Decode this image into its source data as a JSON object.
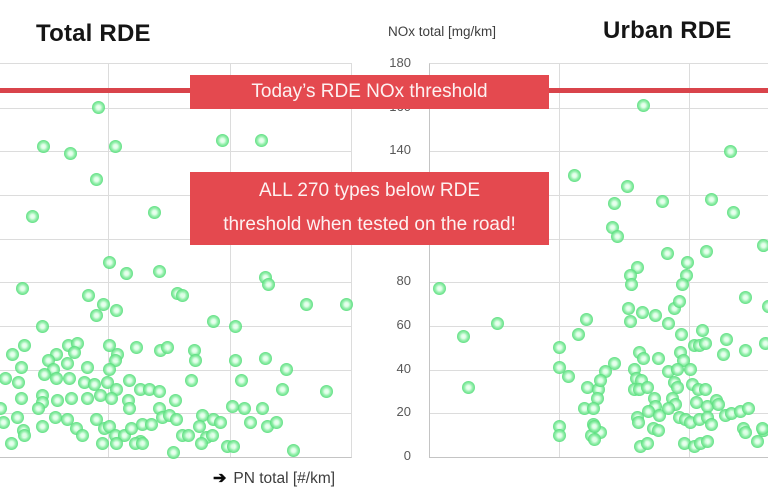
{
  "titles": {
    "left": "Total RDE",
    "right": "Urban RDE"
  },
  "y_axis": {
    "label": "NOx total [mg/km]",
    "ticks": [
      180,
      160,
      140,
      120,
      100,
      80,
      60,
      40,
      20,
      0
    ]
  },
  "x_axis": {
    "arrow": "➔",
    "label": "PN total [#/km]"
  },
  "threshold_banner": {
    "text": "Today’s RDE NOx threshold"
  },
  "callout_banner": {
    "line1": "ALL 270 types below RDE",
    "line2": "threshold when tested on the road!"
  },
  "colors": {
    "banner_red": "#e4494f",
    "line_red": "#d9444b",
    "dot_green": "#52dc78",
    "grid_gray": "#dcdcdc",
    "tick_text": "#585858"
  },
  "chart_data": [
    {
      "type": "scatter",
      "title": "Total RDE",
      "xlabel": "PN total [#/km]",
      "ylabel": "NOx total [mg/km]",
      "ylim": [
        0,
        180
      ],
      "yticks": [
        20,
        40,
        60,
        80,
        100,
        120,
        140,
        160
      ],
      "grid": true,
      "x_gridlines": [
        0.308,
        0.655
      ],
      "threshold_value": 168,
      "points": [
        [
          0.282,
          160
        ],
        [
          0.123,
          142
        ],
        [
          0.202,
          139
        ],
        [
          0.328,
          142
        ],
        [
          0.276,
          127
        ],
        [
          0.094,
          110
        ],
        [
          0.439,
          112
        ],
        [
          0.635,
          145
        ],
        [
          0.744,
          145
        ],
        [
          0.313,
          89
        ],
        [
          0.359,
          84
        ],
        [
          0.453,
          85
        ],
        [
          0.755,
          82
        ],
        [
          0.063,
          77
        ],
        [
          0.251,
          74
        ],
        [
          0.296,
          70
        ],
        [
          0.274,
          65
        ],
        [
          0.333,
          67
        ],
        [
          0.12,
          60
        ],
        [
          0.507,
          75
        ],
        [
          0.764,
          79
        ],
        [
          0.521,
          74
        ],
        [
          0.872,
          70
        ],
        [
          0.986,
          70
        ],
        [
          0.607,
          62
        ],
        [
          0.67,
          60
        ],
        [
          0.071,
          51
        ],
        [
          0.037,
          47
        ],
        [
          0.194,
          51
        ],
        [
          0.222,
          52
        ],
        [
          0.211,
          48
        ],
        [
          0.162,
          47
        ],
        [
          0.137,
          44
        ],
        [
          0.151,
          40
        ],
        [
          0.191,
          43
        ],
        [
          0.313,
          51
        ],
        [
          0.336,
          47
        ],
        [
          0.328,
          44
        ],
        [
          0.39,
          50
        ],
        [
          0.456,
          49
        ],
        [
          0.476,
          50
        ],
        [
          0.313,
          40
        ],
        [
          0.06,
          41
        ],
        [
          0.017,
          36
        ],
        [
          0.054,
          34
        ],
        [
          0.128,
          38
        ],
        [
          0.162,
          36
        ],
        [
          0.197,
          36
        ],
        [
          0.248,
          41
        ],
        [
          0.242,
          34
        ],
        [
          0.268,
          33
        ],
        [
          0.305,
          34
        ],
        [
          0.333,
          31
        ],
        [
          0.37,
          35
        ],
        [
          0.399,
          31
        ],
        [
          0.427,
          31
        ],
        [
          0.453,
          30
        ],
        [
          0.553,
          49
        ],
        [
          0.558,
          44
        ],
        [
          0.672,
          44
        ],
        [
          0.755,
          45
        ],
        [
          0.815,
          40
        ],
        [
          0.547,
          35
        ],
        [
          0.687,
          35
        ],
        [
          0.806,
          31
        ],
        [
          0.929,
          30
        ],
        [
          0.06,
          27
        ],
        [
          0.12,
          28
        ],
        [
          0.122,
          25
        ],
        [
          0.111,
          22
        ],
        [
          0.165,
          26
        ],
        [
          0.205,
          27
        ],
        [
          0.248,
          27
        ],
        [
          0.285,
          28
        ],
        [
          0.319,
          27
        ],
        [
          0.365,
          26
        ],
        [
          0.37,
          22
        ],
        [
          0.453,
          22
        ],
        [
          0.499,
          26
        ],
        [
          0.001,
          22
        ],
        [
          0.051,
          18
        ],
        [
          0.009,
          16
        ],
        [
          0.12,
          14
        ],
        [
          0.157,
          18
        ],
        [
          0.191,
          17
        ],
        [
          0.219,
          13
        ],
        [
          0.234,
          10
        ],
        [
          0.276,
          17
        ],
        [
          0.299,
          13
        ],
        [
          0.313,
          14
        ],
        [
          0.328,
          10
        ],
        [
          0.356,
          10
        ],
        [
          0.376,
          13
        ],
        [
          0.399,
          7
        ],
        [
          0.407,
          15
        ],
        [
          0.433,
          15
        ],
        [
          0.464,
          18
        ],
        [
          0.484,
          19
        ],
        [
          0.066,
          12
        ],
        [
          0.071,
          10
        ],
        [
          0.034,
          6
        ],
        [
          0.293,
          6
        ],
        [
          0.333,
          6
        ],
        [
          0.385,
          6
        ],
        [
          0.407,
          6
        ],
        [
          0.504,
          17
        ],
        [
          0.493,
          2
        ],
        [
          0.578,
          19
        ],
        [
          0.567,
          14
        ],
        [
          0.607,
          17
        ],
        [
          0.627,
          16
        ],
        [
          0.715,
          16
        ],
        [
          0.761,
          14
        ],
        [
          0.789,
          16
        ],
        [
          0.521,
          10
        ],
        [
          0.538,
          10
        ],
        [
          0.587,
          9
        ],
        [
          0.604,
          10
        ],
        [
          0.575,
          6
        ],
        [
          0.647,
          5
        ],
        [
          0.664,
          5
        ],
        [
          0.835,
          3
        ],
        [
          0.661,
          23
        ],
        [
          0.698,
          22
        ],
        [
          0.749,
          22
        ]
      ]
    },
    {
      "type": "scatter",
      "title": "Urban RDE",
      "xlabel": "PN total [#/km]",
      "ylabel": "NOx total [mg/km]",
      "ylim": [
        0,
        180
      ],
      "yticks": [
        20,
        40,
        60,
        80,
        100,
        120,
        140,
        160
      ],
      "grid": true,
      "x_gridlines": [
        0.381,
        0.764
      ],
      "threshold_value": 168,
      "points": [
        [
          0.425,
          129
        ],
        [
          0.631,
          161
        ],
        [
          0.885,
          140
        ],
        [
          0.584,
          124
        ],
        [
          0.543,
          116
        ],
        [
          0.687,
          117
        ],
        [
          0.829,
          118
        ],
        [
          0.894,
          112
        ],
        [
          0.537,
          105
        ],
        [
          0.552,
          101
        ],
        [
          0.985,
          97
        ],
        [
          0.702,
          93
        ],
        [
          0.817,
          94
        ],
        [
          0.761,
          89
        ],
        [
          0.611,
          87
        ],
        [
          0.59,
          83
        ],
        [
          0.758,
          83
        ],
        [
          0.027,
          77
        ],
        [
          0.198,
          61
        ],
        [
          0.1,
          55
        ],
        [
          0.463,
          63
        ],
        [
          0.437,
          56
        ],
        [
          0.381,
          50
        ],
        [
          0.381,
          41
        ],
        [
          0.41,
          37
        ],
        [
          0.115,
          32
        ],
        [
          0.466,
          32
        ],
        [
          0.496,
          31
        ],
        [
          0.493,
          27
        ],
        [
          0.457,
          22
        ],
        [
          0.481,
          22
        ],
        [
          0.481,
          15
        ],
        [
          0.381,
          14
        ],
        [
          0.381,
          10
        ],
        [
          0.475,
          10
        ],
        [
          0.593,
          79
        ],
        [
          0.746,
          79
        ],
        [
          0.587,
          68
        ],
        [
          0.628,
          66
        ],
        [
          0.664,
          65
        ],
        [
          0.59,
          62
        ],
        [
          0.72,
          68
        ],
        [
          0.737,
          71
        ],
        [
          0.932,
          73
        ],
        [
          0.998,
          69
        ],
        [
          0.705,
          61
        ],
        [
          0.743,
          56
        ],
        [
          0.805,
          58
        ],
        [
          0.779,
          51
        ],
        [
          0.796,
          51
        ],
        [
          0.814,
          52
        ],
        [
          0.876,
          54
        ],
        [
          0.867,
          47
        ],
        [
          0.932,
          49
        ],
        [
          0.991,
          52
        ],
        [
          0.619,
          48
        ],
        [
          0.631,
          45
        ],
        [
          0.673,
          45
        ],
        [
          0.74,
          48
        ],
        [
          0.749,
          44
        ],
        [
          0.543,
          43
        ],
        [
          0.519,
          39
        ],
        [
          0.602,
          40
        ],
        [
          0.705,
          39
        ],
        [
          0.731,
          40
        ],
        [
          0.767,
          40
        ],
        [
          0.608,
          36
        ],
        [
          0.625,
          35
        ],
        [
          0.602,
          31
        ],
        [
          0.619,
          31
        ],
        [
          0.643,
          32
        ],
        [
          0.504,
          35
        ],
        [
          0.72,
          34
        ],
        [
          0.729,
          32
        ],
        [
          0.773,
          33
        ],
        [
          0.793,
          31
        ],
        [
          0.814,
          31
        ],
        [
          0.661,
          27
        ],
        [
          0.664,
          23
        ],
        [
          0.714,
          27
        ],
        [
          0.723,
          24
        ],
        [
          0.785,
          25
        ],
        [
          0.82,
          23
        ],
        [
          0.844,
          26
        ],
        [
          0.85,
          24
        ],
        [
          0.611,
          18
        ],
        [
          0.646,
          21
        ],
        [
          0.676,
          19
        ],
        [
          0.705,
          22
        ],
        [
          0.737,
          18
        ],
        [
          0.755,
          17
        ],
        [
          0.767,
          16
        ],
        [
          0.796,
          17
        ],
        [
          0.82,
          18
        ],
        [
          0.829,
          15
        ],
        [
          0.873,
          19
        ],
        [
          0.888,
          20
        ],
        [
          0.917,
          21
        ],
        [
          0.941,
          22
        ],
        [
          0.926,
          13
        ],
        [
          0.658,
          13
        ],
        [
          0.673,
          12
        ],
        [
          0.622,
          5
        ],
        [
          0.643,
          6
        ],
        [
          0.752,
          6
        ],
        [
          0.779,
          5
        ],
        [
          0.799,
          6
        ],
        [
          0.82,
          7
        ],
        [
          0.965,
          7
        ],
        [
          0.985,
          12
        ],
        [
          0.504,
          11
        ],
        [
          0.484,
          14
        ],
        [
          0.484,
          8
        ],
        [
          0.614,
          16
        ],
        [
          0.932,
          11
        ],
        [
          0.982,
          13
        ]
      ]
    }
  ]
}
